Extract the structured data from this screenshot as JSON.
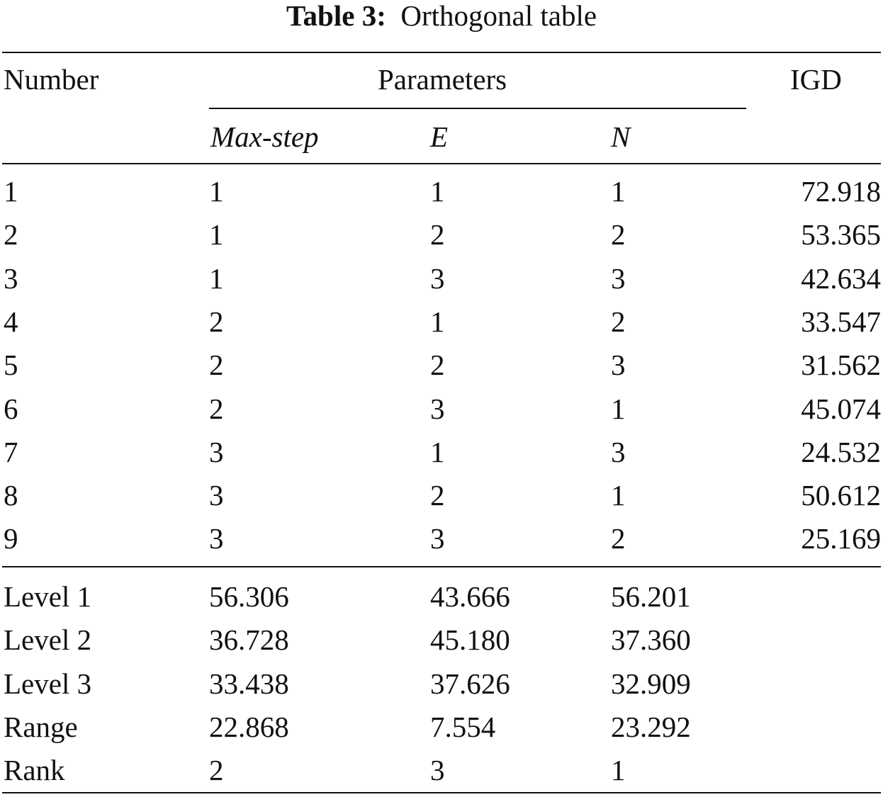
{
  "caption": {
    "label": "Table 3:",
    "title": "Orthogonal table"
  },
  "table": {
    "header": {
      "number": "Number",
      "parameters": "Parameters",
      "igd": "IGD",
      "subheaders": [
        "Max-step",
        "E",
        "N"
      ]
    },
    "rows": [
      [
        "1",
        "1",
        "1",
        "1",
        "72.918"
      ],
      [
        "2",
        "1",
        "2",
        "2",
        "53.365"
      ],
      [
        "3",
        "1",
        "3",
        "3",
        "42.634"
      ],
      [
        "4",
        "2",
        "1",
        "2",
        "33.547"
      ],
      [
        "5",
        "2",
        "2",
        "3",
        "31.562"
      ],
      [
        "6",
        "2",
        "3",
        "1",
        "45.074"
      ],
      [
        "7",
        "3",
        "1",
        "3",
        "24.532"
      ],
      [
        "8",
        "3",
        "2",
        "1",
        "50.612"
      ],
      [
        "9",
        "3",
        "3",
        "2",
        "25.169"
      ]
    ],
    "summary": [
      [
        "Level 1",
        "56.306",
        "43.666",
        "56.201"
      ],
      [
        "Level 2",
        "36.728",
        "45.180",
        "37.360"
      ],
      [
        "Level 3",
        "33.438",
        "37.626",
        "32.909"
      ],
      [
        "Range",
        "22.868",
        "7.554",
        "23.292"
      ],
      [
        "Rank",
        "2",
        "3",
        "1"
      ]
    ]
  }
}
